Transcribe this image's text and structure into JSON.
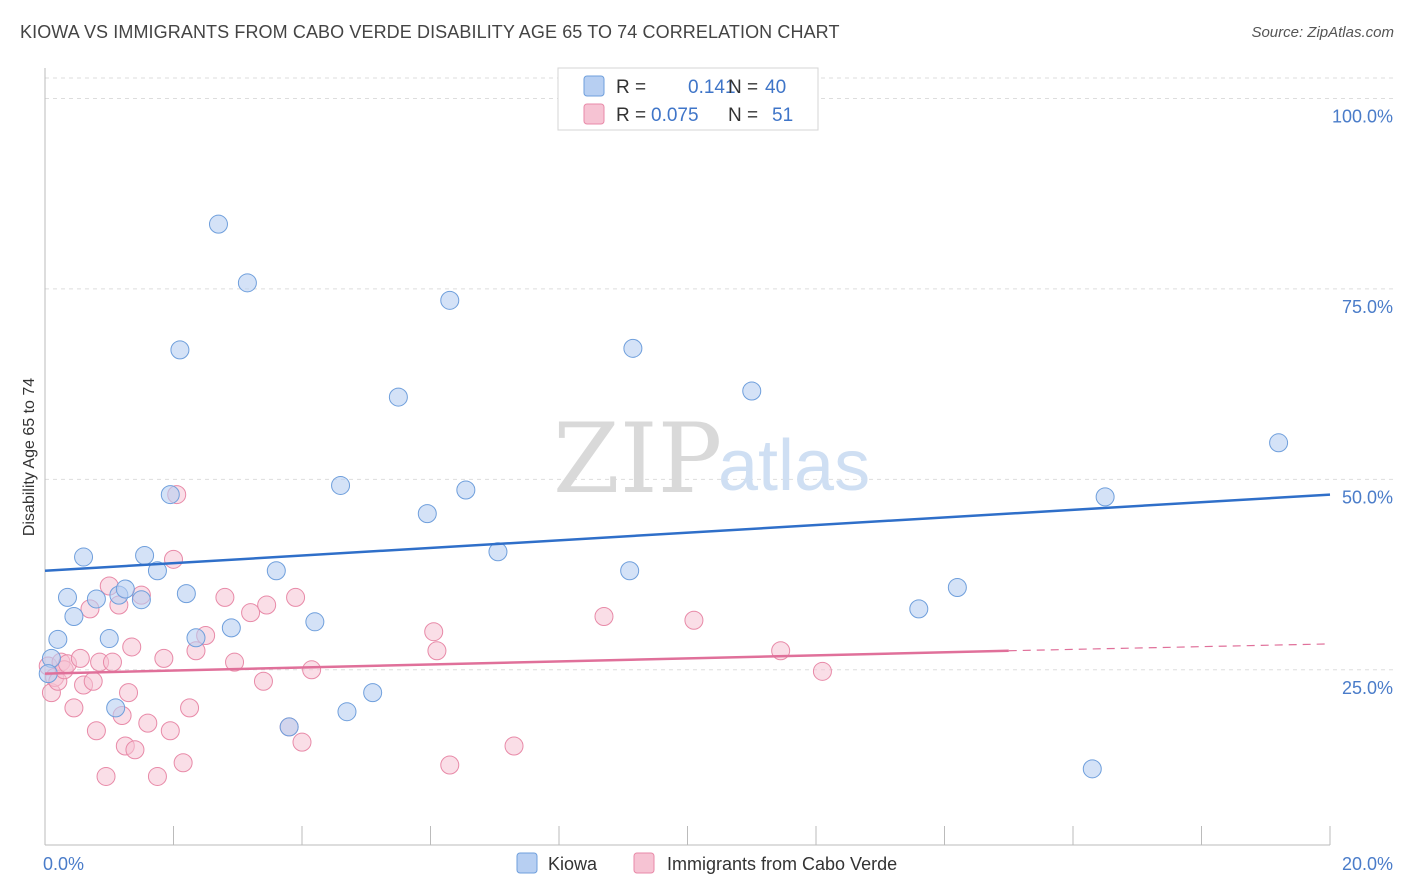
{
  "title": "KIOWA VS IMMIGRANTS FROM CABO VERDE DISABILITY AGE 65 TO 74 CORRELATION CHART",
  "source": "Source: ZipAtlas.com",
  "watermark": {
    "zip": "ZIP",
    "atlas": "atlas"
  },
  "colors": {
    "kiowa_fill": "#b7cff2",
    "kiowa_stroke": "#6f9fdc",
    "kiowa_line": "#2f6fc9",
    "cabo_fill": "#f6c3d3",
    "cabo_stroke": "#e88aa8",
    "cabo_line": "#e0709a",
    "tick_label": "#4a7cc9",
    "grid": "#dddddd"
  },
  "legend": {
    "items": [
      {
        "r_label": "R =",
        "r_value": "0.141",
        "n_label": "N =",
        "n_value": "40"
      },
      {
        "r_label": "R =",
        "r_value": "0.075",
        "n_label": "N =",
        "n_value": "51"
      }
    ]
  },
  "bottom_legend": [
    "Kiowa",
    "Immigrants from Cabo Verde"
  ],
  "chart_data": {
    "type": "scatter",
    "xlabel": "",
    "ylabel": "Disability Age 65 to 74",
    "xlim": [
      0,
      20
    ],
    "ylim": [
      2,
      104
    ],
    "x_tick_labels": [
      "0.0%",
      "20.0%"
    ],
    "y_ticks": [
      25,
      50,
      75,
      100
    ],
    "y_tick_labels": [
      "25.0%",
      "50.0%",
      "75.0%",
      "100.0%"
    ],
    "grid": "horizontal dashed",
    "series": [
      {
        "name": "Kiowa",
        "points": [
          [
            0.1,
            26.5
          ],
          [
            0.2,
            29.0
          ],
          [
            0.35,
            34.5
          ],
          [
            0.45,
            32.0
          ],
          [
            0.6,
            39.8
          ],
          [
            0.8,
            34.3
          ],
          [
            1.0,
            29.1
          ],
          [
            1.1,
            20.0
          ],
          [
            1.15,
            34.8
          ],
          [
            1.25,
            35.6
          ],
          [
            1.5,
            34.2
          ],
          [
            1.55,
            40.0
          ],
          [
            1.75,
            38.0
          ],
          [
            1.95,
            48.0
          ],
          [
            2.1,
            67.0
          ],
          [
            2.2,
            35.0
          ],
          [
            2.35,
            29.2
          ],
          [
            2.7,
            83.5
          ],
          [
            2.9,
            30.5
          ],
          [
            3.15,
            75.8
          ],
          [
            3.6,
            38.0
          ],
          [
            3.8,
            17.5
          ],
          [
            4.2,
            31.3
          ],
          [
            4.6,
            49.2
          ],
          [
            4.7,
            19.5
          ],
          [
            5.1,
            22.0
          ],
          [
            5.5,
            60.8
          ],
          [
            5.95,
            45.5
          ],
          [
            6.3,
            73.5
          ],
          [
            6.55,
            48.6
          ],
          [
            7.05,
            40.5
          ],
          [
            9.1,
            38.0
          ],
          [
            9.15,
            67.2
          ],
          [
            11.0,
            61.6
          ],
          [
            13.6,
            33.0
          ],
          [
            14.2,
            35.8
          ],
          [
            16.3,
            12.0
          ],
          [
            16.5,
            47.7
          ],
          [
            19.2,
            54.8
          ],
          [
            0.05,
            24.5
          ]
        ]
      },
      {
        "name": "Immigrants from Cabo Verde",
        "points": [
          [
            0.05,
            25.5
          ],
          [
            0.1,
            22.0
          ],
          [
            0.15,
            24.0
          ],
          [
            0.2,
            23.5
          ],
          [
            0.25,
            26.0
          ],
          [
            0.3,
            25.0
          ],
          [
            0.35,
            25.8
          ],
          [
            0.45,
            20.0
          ],
          [
            0.55,
            26.5
          ],
          [
            0.6,
            23.0
          ],
          [
            0.7,
            33.0
          ],
          [
            0.75,
            23.5
          ],
          [
            0.8,
            17.0
          ],
          [
            0.85,
            26.0
          ],
          [
            0.95,
            11.0
          ],
          [
            1.0,
            36.0
          ],
          [
            1.05,
            26.0
          ],
          [
            1.15,
            33.5
          ],
          [
            1.2,
            19.0
          ],
          [
            1.25,
            15.0
          ],
          [
            1.3,
            22.0
          ],
          [
            1.35,
            28.0
          ],
          [
            1.4,
            14.5
          ],
          [
            1.5,
            34.8
          ],
          [
            1.6,
            18.0
          ],
          [
            1.75,
            11.0
          ],
          [
            1.85,
            26.5
          ],
          [
            1.95,
            17.0
          ],
          [
            2.0,
            39.5
          ],
          [
            2.05,
            48.0
          ],
          [
            2.15,
            12.8
          ],
          [
            2.25,
            20.0
          ],
          [
            2.35,
            27.5
          ],
          [
            2.5,
            29.5
          ],
          [
            2.8,
            34.5
          ],
          [
            2.95,
            26.0
          ],
          [
            3.2,
            32.5
          ],
          [
            3.4,
            23.5
          ],
          [
            3.45,
            33.5
          ],
          [
            3.8,
            17.5
          ],
          [
            3.9,
            34.5
          ],
          [
            4.0,
            15.5
          ],
          [
            4.15,
            25.0
          ],
          [
            6.05,
            30.0
          ],
          [
            6.1,
            27.5
          ],
          [
            6.3,
            12.5
          ],
          [
            7.3,
            15.0
          ],
          [
            8.7,
            32.0
          ],
          [
            10.1,
            31.5
          ],
          [
            11.45,
            27.5
          ],
          [
            12.1,
            24.8
          ]
        ]
      }
    ],
    "trend_lines": [
      {
        "series": "Kiowa",
        "x": [
          0,
          20
        ],
        "y": [
          38.0,
          48.0
        ]
      },
      {
        "series": "Immigrants from Cabo Verde",
        "x": [
          0,
          15
        ],
        "y": [
          24.5,
          27.5
        ],
        "dashed_extension": [
          15,
          20
        ],
        "dashed_y": [
          27.5,
          28.4
        ]
      }
    ]
  }
}
